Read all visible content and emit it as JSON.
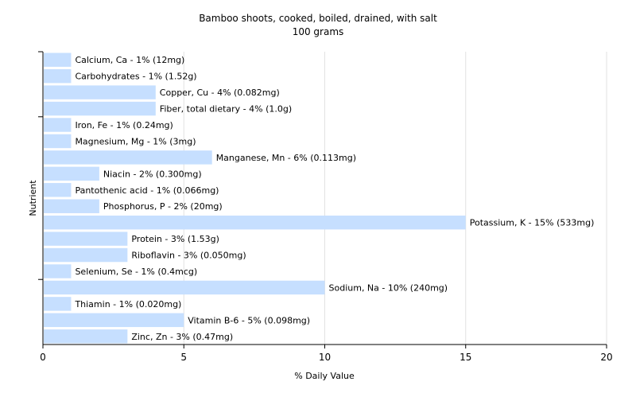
{
  "chart_data": {
    "type": "bar",
    "orientation": "horizontal",
    "title": "Bamboo shoots, cooked, boiled, drained, with salt",
    "subtitle": "100 grams",
    "xlabel": "% Daily Value",
    "ylabel": "Nutrient",
    "xlim": [
      0,
      20
    ],
    "xticks": [
      "0",
      "5",
      "10",
      "15",
      "20"
    ],
    "grid": true,
    "legend": "none",
    "bar_color": "#c6dfff",
    "categories": [
      "Calcium, Ca",
      "Carbohydrates",
      "Copper, Cu",
      "Fiber, total dietary",
      "Iron, Fe",
      "Magnesium, Mg",
      "Manganese, Mn",
      "Niacin",
      "Pantothenic acid",
      "Phosphorus, P",
      "Potassium, K",
      "Protein",
      "Riboflavin",
      "Selenium, Se",
      "Sodium, Na",
      "Thiamin",
      "Vitamin B-6",
      "Zinc, Zn"
    ],
    "values": [
      1,
      1,
      4,
      4,
      1,
      1,
      6,
      2,
      1,
      2,
      15,
      3,
      3,
      1,
      10,
      1,
      5,
      3
    ],
    "labels": [
      "Calcium, Ca - 1% (12mg)",
      "Carbohydrates - 1% (1.52g)",
      "Copper, Cu - 4% (0.082mg)",
      "Fiber, total dietary - 4% (1.0g)",
      "Iron, Fe - 1% (0.24mg)",
      "Magnesium, Mg - 1% (3mg)",
      "Manganese, Mn - 6% (0.113mg)",
      "Niacin - 2% (0.300mg)",
      "Pantothenic acid - 1% (0.066mg)",
      "Phosphorus, P - 2% (20mg)",
      "Potassium, K - 15% (533mg)",
      "Protein - 3% (1.53g)",
      "Riboflavin - 3% (0.050mg)",
      "Selenium, Se - 1% (0.4mcg)",
      "Sodium, Na - 10% (240mg)",
      "Thiamin - 1% (0.020mg)",
      "Vitamin B-6 - 5% (0.098mg)",
      "Zinc, Zn - 3% (0.47mg)"
    ]
  }
}
